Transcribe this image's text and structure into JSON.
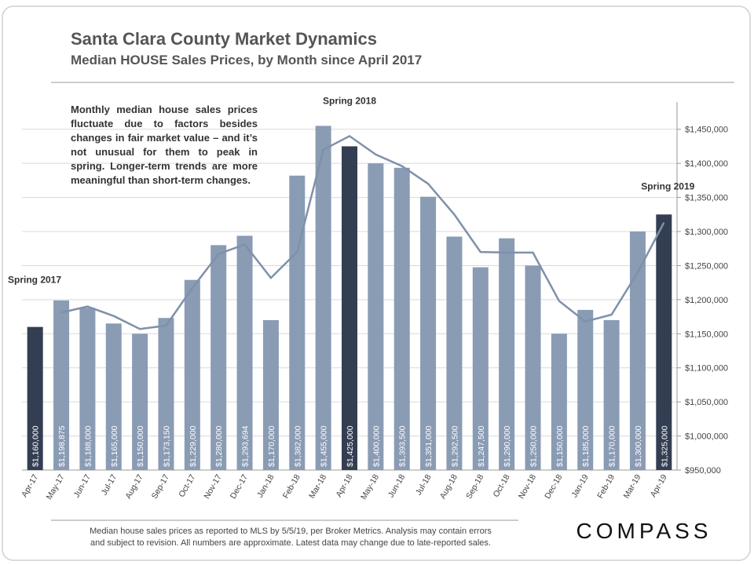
{
  "title": "Santa Clara County Market Dynamics",
  "subtitle": "Median HOUSE Sales Prices, by Month since April 2017",
  "note": "Monthly median house sales prices fluctuate due to factors besides changes in fair market value – and it’s not unusual for them to peak in spring. Longer-term trends are more meaningful than short-term changes.",
  "footer": [
    "Median house sales prices as reported to MLS by 5/5/19, per Broker Metrics.  Analysis may contain errors",
    "and subject to revision.  All numbers are approximate.  Latest data may change due to late-reported sales."
  ],
  "logo": "COMPASS",
  "chart_data": {
    "type": "bar",
    "categories": [
      "Apr-17",
      "May-17",
      "Jun-17",
      "Jul-17",
      "Aug-17",
      "Sep-17",
      "Oct-17",
      "Nov-17",
      "Dec-17",
      "Jan-18",
      "Feb-18",
      "Mar-18",
      "Apr-18",
      "May-18",
      "Jun-18",
      "Jul-18",
      "Aug-18",
      "Sep-18",
      "Oct-18",
      "Nov-18",
      "Dec-18",
      "Jan-19",
      "Feb-19",
      "Mar-19",
      "Apr-19"
    ],
    "values": [
      1160000,
      1198875,
      1188000,
      1165000,
      1150000,
      1173150,
      1229000,
      1280000,
      1293694,
      1170000,
      1382000,
      1455000,
      1425000,
      1400000,
      1393500,
      1351000,
      1292500,
      1247500,
      1290000,
      1250000,
      1150000,
      1185000,
      1170000,
      1300000,
      1325000
    ],
    "value_labels": [
      "$1,160,000",
      "$1,198,875",
      "$1,188,000",
      "$1,165,000",
      "$1,150,000",
      "$1,173,150",
      "$1,229,000",
      "$1,280,000",
      "$1,293,694",
      "$1,170,000",
      "$1,382,000",
      "$1,455,000",
      "$1,425,000",
      "$1,400,000",
      "$1,393,500",
      "$1,351,000",
      "$1,292,500",
      "$1,247,500",
      "$1,290,000",
      "$1,250,000",
      "$1,150,000",
      "$1,185,000",
      "$1,170,000",
      "$1,300,000",
      "$1,325,000"
    ],
    "colors": [
      "#343e52",
      "#8a9bb4",
      "#8a9bb4",
      "#8a9bb4",
      "#8a9bb4",
      "#8a9bb4",
      "#8a9bb4",
      "#8a9bb4",
      "#8a9bb4",
      "#8a9bb4",
      "#8a9bb4",
      "#8a9bb4",
      "#343e52",
      "#8a9bb4",
      "#8a9bb4",
      "#8a9bb4",
      "#8a9bb4",
      "#8a9bb4",
      "#8a9bb4",
      "#8a9bb4",
      "#8a9bb4",
      "#8a9bb4",
      "#8a9bb4",
      "#8a9bb4",
      "#343e52"
    ],
    "line": {
      "color": "#7f91aa",
      "values": [
        null,
        1181000,
        1190000,
        1176000,
        1157000,
        1162000,
        1217000,
        1267000,
        1281000,
        1232000,
        1270000,
        1420000,
        1440000,
        1413000,
        1396000,
        1370000,
        1325000,
        1270000,
        1269000,
        1269000,
        1198000,
        1168000,
        1178000,
        1240000,
        1313000
      ]
    },
    "ylim": [
      950000,
      1490000
    ],
    "yticks": [
      {
        "value": 950000,
        "label": "$950,000"
      },
      {
        "value": 1000000,
        "label": "$1,000,000"
      },
      {
        "value": 1050000,
        "label": "$1,050,000"
      },
      {
        "value": 1100000,
        "label": "$1,100,000"
      },
      {
        "value": 1150000,
        "label": "$1,150,000"
      },
      {
        "value": 1200000,
        "label": "$1,200,000"
      },
      {
        "value": 1250000,
        "label": "$1,250,000"
      },
      {
        "value": 1300000,
        "label": "$1,300,000"
      },
      {
        "value": 1350000,
        "label": "$1,350,000"
      },
      {
        "value": 1400000,
        "label": "$1,400,000"
      },
      {
        "value": 1450000,
        "label": "$1,450,000"
      }
    ],
    "grid": true,
    "annotations": [
      {
        "text": "Spring 2017",
        "index": 0
      },
      {
        "text": "Spring 2018",
        "index": 12
      },
      {
        "text": "Spring 2019",
        "index": 24
      }
    ]
  }
}
